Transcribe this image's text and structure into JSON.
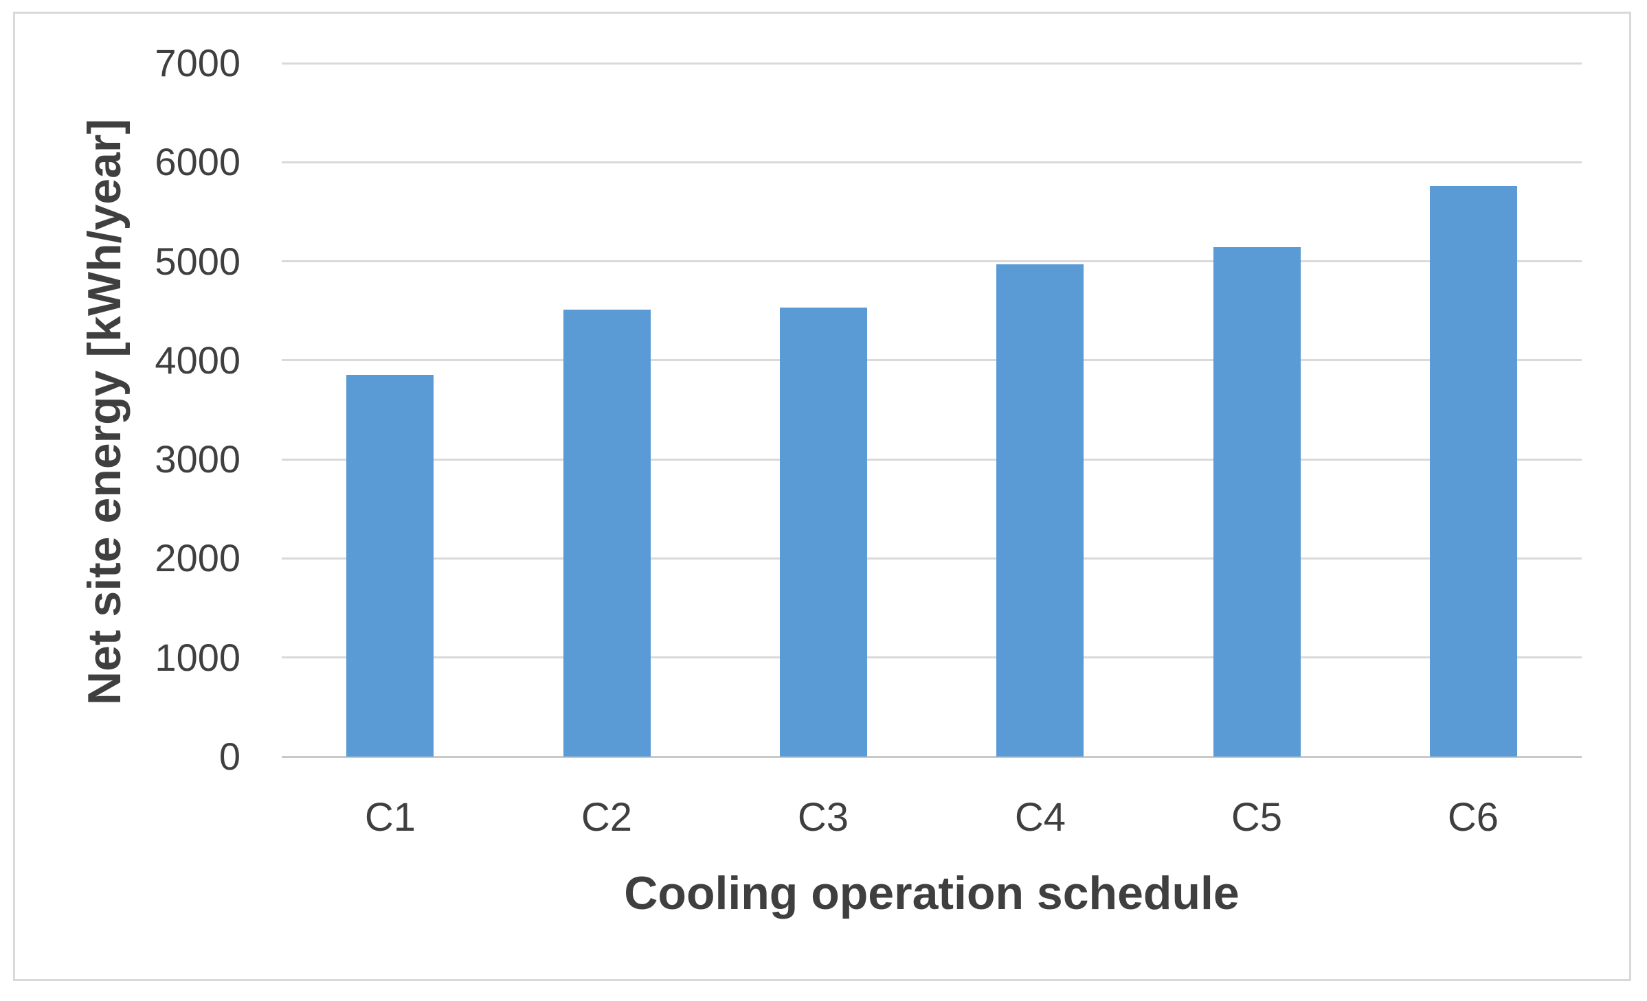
{
  "chart_data": {
    "type": "bar",
    "categories": [
      "C1",
      "C2",
      "C3",
      "C4",
      "C5",
      "C6"
    ],
    "values": [
      3850,
      4510,
      4530,
      4970,
      5140,
      5760
    ],
    "title": "",
    "xlabel": "Cooling operation schedule",
    "ylabel": "Net site energy [kWh/year]",
    "ylim": [
      0,
      7000
    ],
    "ytick_step": 1000,
    "y_tick_labels": [
      "0",
      "1000",
      "2000",
      "3000",
      "4000",
      "5000",
      "6000",
      "7000"
    ],
    "grid": "horizontal-only",
    "legend": "none",
    "bar_color": "#5B9BD5",
    "gridline_color": "#D9D9D9",
    "axis_line_color": "#C9C9C9",
    "text_color": "#3F3F3F",
    "figure_border_color": "#D9D9D9"
  }
}
